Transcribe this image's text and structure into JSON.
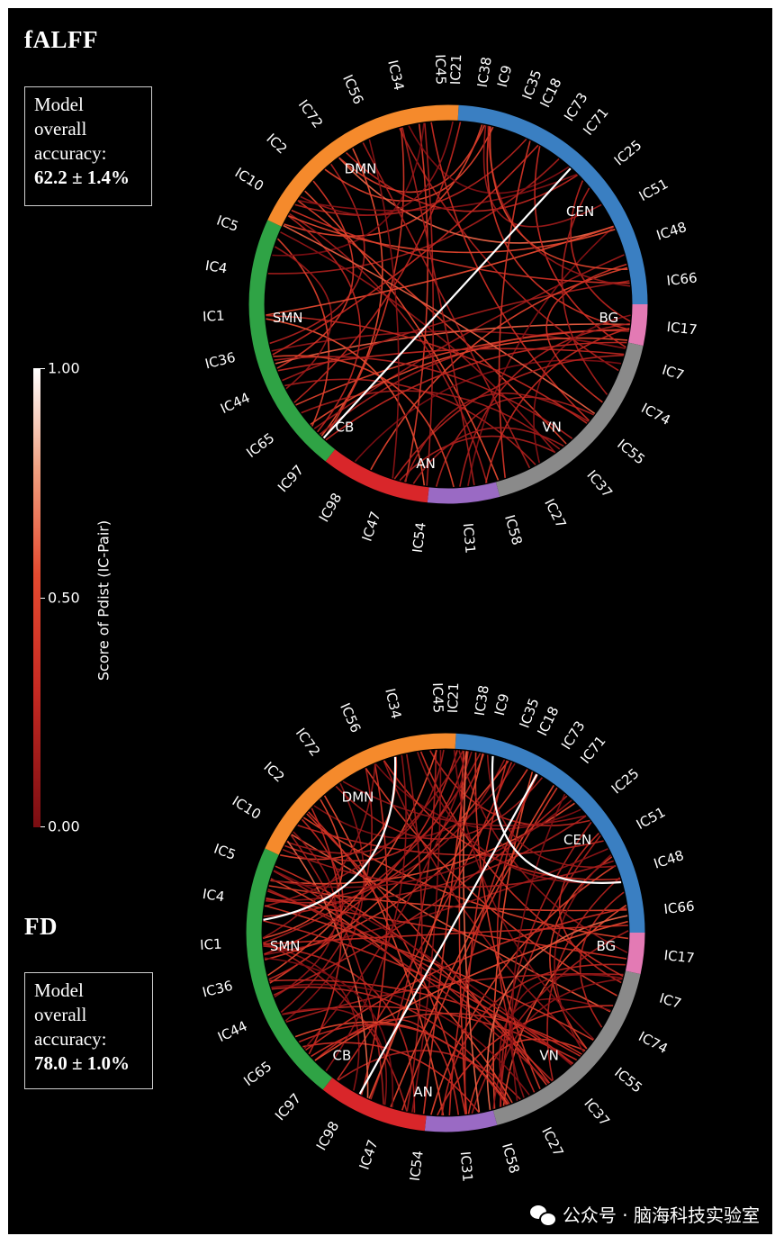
{
  "colors": {
    "DMN": "#f58a2c",
    "CEN": "#3a7fc2",
    "BG": "#e37ab4",
    "VN": "#8a8a8a",
    "AN": "#9a6ac4",
    "CB": "#d9262a",
    "SMN": "#2fa345"
  },
  "labels": [
    "IC21",
    "IC9",
    "IC18",
    "IC71",
    "IC25",
    "IC51",
    "IC48",
    "IC66",
    "IC17",
    "IC7",
    "IC74",
    "IC55",
    "IC37",
    "IC27",
    "IC58",
    "IC31",
    "IC54",
    "IC47",
    "IC98",
    "IC97",
    "IC65",
    "IC44",
    "IC36",
    "IC1",
    "IC4",
    "IC5",
    "IC10",
    "IC2",
    "IC72",
    "IC56",
    "IC34",
    "IC45",
    "IC38",
    "IC35",
    "IC73"
  ],
  "networks": [
    {
      "name": "CEN",
      "color": "#3a7fc2"
    },
    {
      "name": "BG",
      "color": "#e37ab4"
    },
    {
      "name": "VN",
      "color": "#8a8a8a"
    },
    {
      "name": "AN",
      "color": "#9a6ac4"
    },
    {
      "name": "CB",
      "color": "#d9262a"
    },
    {
      "name": "SMN",
      "color": "#2fa345"
    },
    {
      "name": "DMN",
      "color": "#f58a2c"
    }
  ],
  "colorbar": {
    "title": "Score of Pdist (IC-Pair)",
    "ticks": [
      "1.00",
      "0.50",
      "0.00"
    ]
  },
  "panels": [
    {
      "title": "fALFF",
      "accuracy_lines": [
        "Model",
        "overall",
        "accuracy:"
      ],
      "accuracy_value": "62.2 ± 1.4%"
    },
    {
      "title": "FD",
      "accuracy_lines": [
        "Model",
        "overall",
        "accuracy:"
      ],
      "accuracy_value": "78.0 ± 1.0%"
    }
  ],
  "watermark": "公众号 · 脑海科技实验室"
}
